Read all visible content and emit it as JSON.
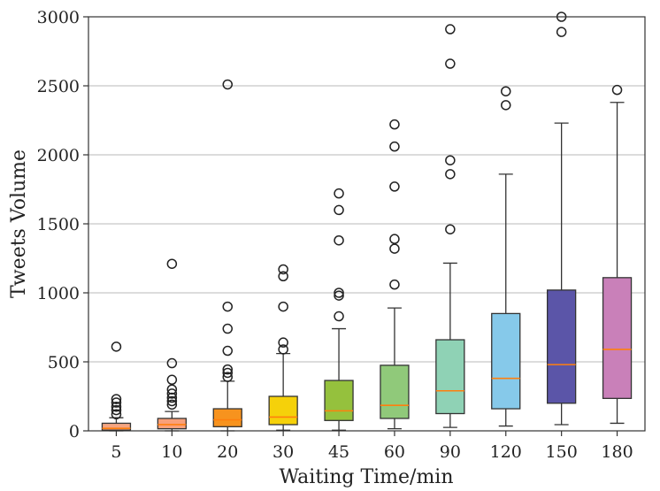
{
  "chart_data": {
    "type": "boxplot",
    "title": "",
    "xlabel": "Waiting Time/min",
    "ylabel": "Tweets Volume",
    "ylim": [
      0,
      3000
    ],
    "yticks": [
      0,
      500,
      1000,
      1500,
      2000,
      2500,
      3000
    ],
    "grid": "horizontal",
    "median_color": "#ff7f0e",
    "categories": [
      "5",
      "10",
      "20",
      "30",
      "45",
      "60",
      "90",
      "120",
      "150",
      "180"
    ],
    "boxes": [
      {
        "label": "5",
        "color": "#f4a582",
        "q1": 5,
        "median": 18,
        "q3": 55,
        "whisker_low": 0,
        "whisker_high": 95,
        "fliers": [
          120,
          150,
          175,
          205,
          230,
          610
        ]
      },
      {
        "label": "10",
        "color": "#f9a07a",
        "q1": 15,
        "median": 45,
        "q3": 90,
        "whisker_low": 0,
        "whisker_high": 140,
        "fliers": [
          190,
          215,
          240,
          270,
          300,
          370,
          490,
          1210
        ]
      },
      {
        "label": "20",
        "color": "#f7931e",
        "q1": 30,
        "median": 80,
        "q3": 160,
        "whisker_low": 0,
        "whisker_high": 360,
        "fliers": [
          390,
          420,
          445,
          580,
          740,
          900,
          2510
        ]
      },
      {
        "label": "30",
        "color": "#f5d10a",
        "q1": 45,
        "median": 100,
        "q3": 250,
        "whisker_low": 5,
        "whisker_high": 560,
        "fliers": [
          590,
          640,
          900,
          1120,
          1170
        ]
      },
      {
        "label": "45",
        "color": "#95c13d",
        "q1": 75,
        "median": 145,
        "q3": 365,
        "whisker_low": 5,
        "whisker_high": 740,
        "fliers": [
          830,
          980,
          1000,
          1380,
          1600,
          1720
        ]
      },
      {
        "label": "60",
        "color": "#90c97a",
        "q1": 90,
        "median": 185,
        "q3": 475,
        "whisker_low": 15,
        "whisker_high": 890,
        "fliers": [
          1060,
          1320,
          1390,
          1770,
          2060,
          2220
        ]
      },
      {
        "label": "90",
        "color": "#8fd2b5",
        "q1": 125,
        "median": 290,
        "q3": 660,
        "whisker_low": 25,
        "whisker_high": 1215,
        "fliers": [
          1460,
          1860,
          1960,
          2660,
          2910
        ]
      },
      {
        "label": "120",
        "color": "#86c9ea",
        "q1": 160,
        "median": 380,
        "q3": 850,
        "whisker_low": 35,
        "whisker_high": 1860,
        "fliers": [
          2360,
          2460
        ]
      },
      {
        "label": "150",
        "color": "#5b55a8",
        "q1": 200,
        "median": 480,
        "q3": 1020,
        "whisker_low": 45,
        "whisker_high": 2230,
        "fliers": [
          2890,
          3000
        ]
      },
      {
        "label": "180",
        "color": "#c980b9",
        "q1": 235,
        "median": 590,
        "q3": 1110,
        "whisker_low": 55,
        "whisker_high": 2380,
        "fliers": [
          2470
        ]
      }
    ]
  }
}
